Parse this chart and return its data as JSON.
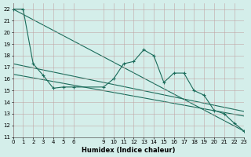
{
  "xlabel": "Humidex (Indice chaleur)",
  "bg_color": "#d4eeea",
  "grid_color": "#c0a0a0",
  "line_color": "#1a6b5a",
  "x_ticks": [
    0,
    1,
    2,
    3,
    4,
    5,
    6,
    9,
    10,
    11,
    12,
    13,
    14,
    15,
    16,
    17,
    18,
    19,
    20,
    21,
    22,
    23
  ],
  "xlim": [
    0,
    23
  ],
  "ylim": [
    11,
    22.5
  ],
  "y_ticks": [
    11,
    12,
    13,
    14,
    15,
    16,
    17,
    18,
    19,
    20,
    21,
    22
  ],
  "series1_x": [
    0,
    1,
    2,
    3,
    4,
    5,
    6,
    9,
    10,
    11,
    12,
    13,
    14,
    15,
    16,
    17,
    18,
    19,
    20,
    21,
    22,
    23
  ],
  "series1_y": [
    22,
    22,
    17.3,
    16.3,
    15.2,
    15.3,
    15.3,
    15.3,
    16.0,
    17.3,
    17.5,
    18.5,
    18.0,
    15.7,
    16.5,
    16.5,
    15.0,
    14.6,
    13.3,
    13.0,
    12.2,
    11.5
  ],
  "series2_x": [
    0,
    23
  ],
  "series2_y": [
    22.0,
    11.5
  ],
  "series3_x": [
    0,
    23
  ],
  "series3_y": [
    17.3,
    13.2
  ],
  "series4_x": [
    0,
    23
  ],
  "series4_y": [
    16.4,
    12.8
  ]
}
